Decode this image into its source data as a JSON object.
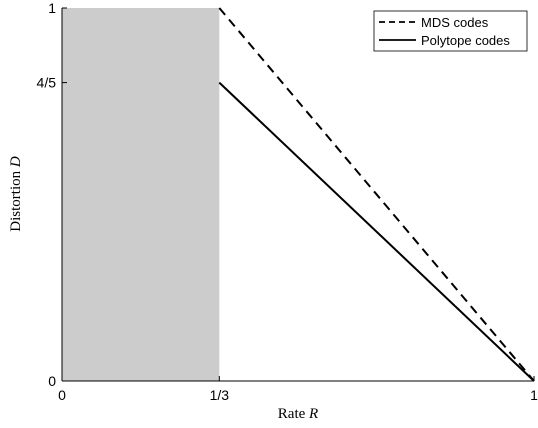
{
  "chart_data": {
    "type": "line",
    "xlabel": "Rate",
    "xlabel_var": "R",
    "ylabel": "Distortion",
    "ylabel_var": "D",
    "xlim": [
      0,
      1
    ],
    "ylim": [
      0,
      1
    ],
    "xticks": [
      {
        "value": 0,
        "label": "0"
      },
      {
        "value": 0.3333,
        "label": "1/3"
      },
      {
        "value": 1,
        "label": "1"
      }
    ],
    "yticks": [
      {
        "value": 0,
        "label": "0"
      },
      {
        "value": 0.8,
        "label": "4/5"
      },
      {
        "value": 1,
        "label": "1"
      }
    ],
    "shaded_region": {
      "x": [
        0,
        0.3333
      ],
      "color": "#cccccc"
    },
    "series": [
      {
        "name": "MDS codes",
        "style": "dashed",
        "color": "#000000",
        "x": [
          0.3333,
          1
        ],
        "y": [
          1,
          0
        ]
      },
      {
        "name": "Polytope codes",
        "style": "solid",
        "color": "#000000",
        "x": [
          0.3333,
          1
        ],
        "y": [
          0.8,
          0
        ]
      }
    ],
    "legend": "top-right",
    "grid": false
  }
}
